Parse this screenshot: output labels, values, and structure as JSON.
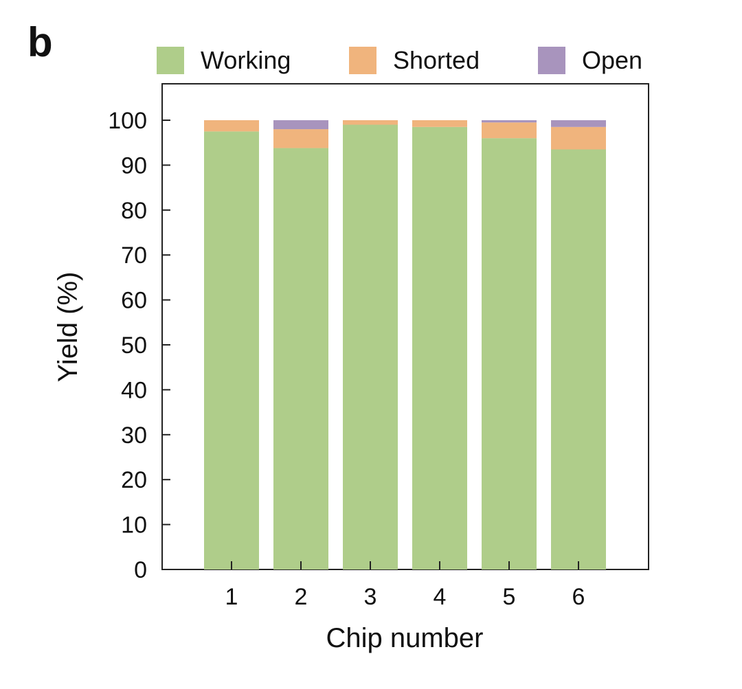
{
  "panel_label": "b",
  "chart_data": {
    "type": "bar",
    "stacked": true,
    "categories": [
      "1",
      "2",
      "3",
      "4",
      "5",
      "6"
    ],
    "series": [
      {
        "name": "Working",
        "color": "#afcd8a",
        "values": [
          97.5,
          93.8,
          99.0,
          98.5,
          96.0,
          93.5
        ]
      },
      {
        "name": "Shorted",
        "color": "#f0b47d",
        "values": [
          2.5,
          4.2,
          1.0,
          1.5,
          3.5,
          5.0
        ]
      },
      {
        "name": "Open",
        "color": "#a894bd",
        "values": [
          0.0,
          2.0,
          0.0,
          0.0,
          0.5,
          1.5
        ]
      }
    ],
    "ylabel": "Yield (%)",
    "xlabel": "Chip number",
    "ylim": [
      0,
      108
    ],
    "yticks": [
      0,
      10,
      20,
      30,
      40,
      50,
      60,
      70,
      80,
      90,
      100
    ],
    "grid": false,
    "legend_position": "top"
  }
}
